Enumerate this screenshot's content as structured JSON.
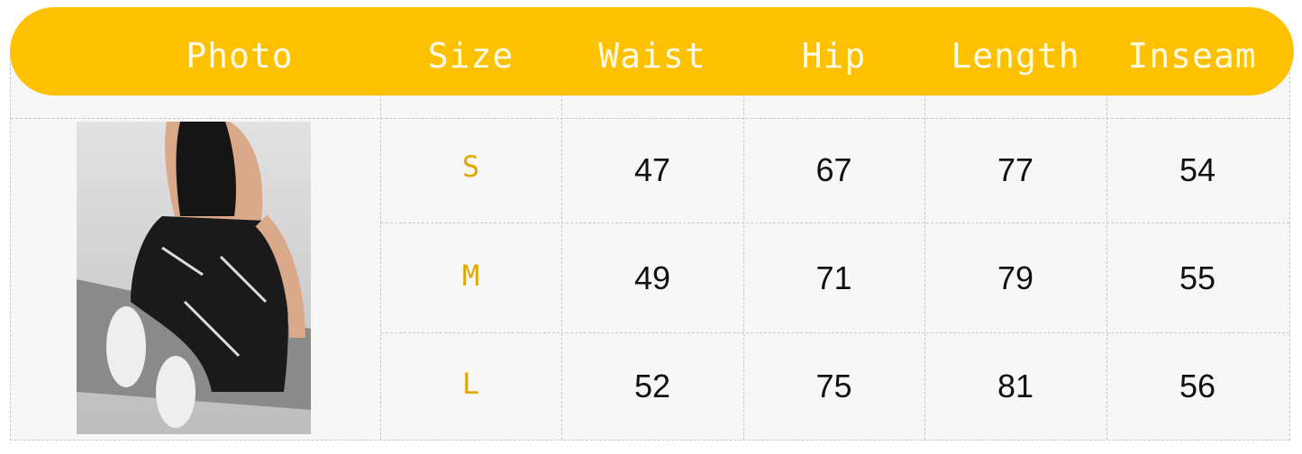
{
  "header": {
    "columns": [
      "Photo",
      "Size",
      "Waist",
      "Hip",
      "Length",
      "Inseam"
    ]
  },
  "colors": {
    "header_bg": "#fdc100",
    "size_text": "#e0a800"
  },
  "rows": [
    {
      "size": "S",
      "waist": "47",
      "hip": "67",
      "length": "77",
      "inseam": "54"
    },
    {
      "size": "M",
      "waist": "49",
      "hip": "71",
      "length": "79",
      "inseam": "55"
    },
    {
      "size": "L",
      "waist": "52",
      "hip": "75",
      "length": "81",
      "inseam": "56"
    }
  ]
}
